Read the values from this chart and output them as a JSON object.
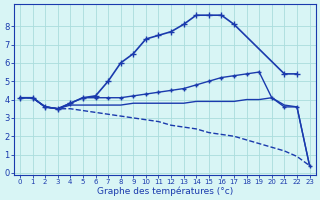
{
  "xlabel": "Graphe des températures (°c)",
  "background_color": "#d8f5f5",
  "grid_color": "#aadddd",
  "line_color": "#1a3aad",
  "x_ticks": [
    0,
    1,
    2,
    3,
    4,
    5,
    6,
    7,
    8,
    9,
    10,
    11,
    12,
    13,
    14,
    15,
    16,
    17,
    18,
    19,
    20,
    21,
    22,
    23
  ],
  "y_ticks": [
    0,
    1,
    2,
    3,
    4,
    5,
    6,
    7,
    8
  ],
  "xlim": [
    -0.5,
    23.5
  ],
  "ylim": [
    -0.1,
    9.2
  ],
  "series": [
    {
      "x": [
        0,
        1,
        2,
        3,
        4,
        5,
        6,
        7,
        8,
        9,
        10,
        11,
        12,
        13,
        14,
        15,
        16,
        17,
        21,
        22
      ],
      "y": [
        4.1,
        4.1,
        3.6,
        3.5,
        3.8,
        4.1,
        4.2,
        5.0,
        6.0,
        6.5,
        7.3,
        7.5,
        7.7,
        8.1,
        8.6,
        8.6,
        8.6,
        8.1,
        5.4,
        5.4
      ],
      "marker": "+",
      "markersize": 4,
      "linewidth": 1.2,
      "linestyle": "-"
    },
    {
      "x": [
        0,
        1,
        2,
        3,
        4,
        5,
        6,
        7,
        8,
        9,
        10,
        11,
        12,
        13,
        14,
        15,
        16,
        17,
        18,
        19,
        20,
        21,
        22,
        23
      ],
      "y": [
        4.1,
        4.1,
        3.6,
        3.5,
        3.8,
        4.1,
        4.1,
        4.1,
        4.1,
        4.2,
        4.3,
        4.4,
        4.5,
        4.6,
        4.8,
        5.0,
        5.2,
        5.3,
        5.4,
        5.5,
        4.1,
        3.6,
        3.6,
        0.4
      ],
      "marker": "+",
      "markersize": 3,
      "linewidth": 1.0,
      "linestyle": "-"
    },
    {
      "x": [
        0,
        1,
        2,
        3,
        4,
        5,
        6,
        7,
        8,
        9,
        10,
        11,
        12,
        13,
        14,
        15,
        16,
        17,
        18,
        19,
        20,
        21,
        22,
        23
      ],
      "y": [
        4.1,
        4.1,
        3.6,
        3.5,
        3.7,
        3.7,
        3.7,
        3.7,
        3.7,
        3.8,
        3.8,
        3.8,
        3.8,
        3.8,
        3.9,
        3.9,
        3.9,
        3.9,
        4.0,
        4.0,
        4.1,
        3.7,
        3.6,
        0.4
      ],
      "marker": null,
      "markersize": 0,
      "linewidth": 1.0,
      "linestyle": "-"
    },
    {
      "comment": "descending line from (3,3.5) to (23,0.4)",
      "x": [
        0,
        1,
        2,
        3,
        4,
        5,
        6,
        7,
        8,
        9,
        10,
        11,
        12,
        13,
        14,
        15,
        16,
        17,
        18,
        19,
        20,
        21,
        22,
        23
      ],
      "y": [
        4.1,
        4.1,
        3.6,
        3.5,
        3.5,
        3.4,
        3.3,
        3.2,
        3.1,
        3.0,
        2.9,
        2.8,
        2.6,
        2.5,
        2.4,
        2.2,
        2.1,
        2.0,
        1.8,
        1.6,
        1.4,
        1.2,
        0.9,
        0.4
      ],
      "marker": null,
      "markersize": 0,
      "linewidth": 1.0,
      "linestyle": "--"
    }
  ]
}
